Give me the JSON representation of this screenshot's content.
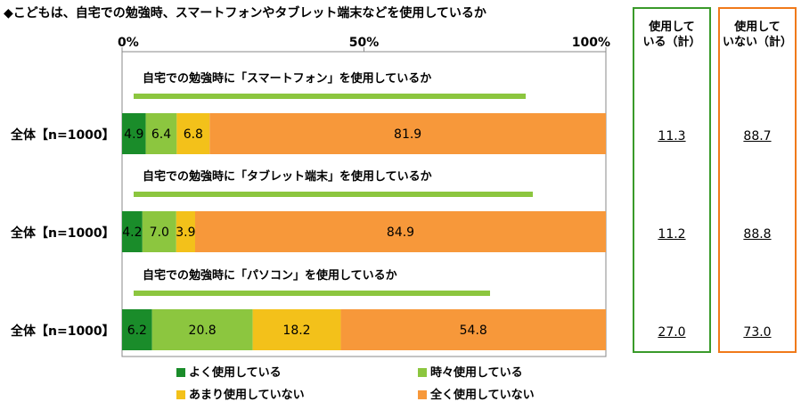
{
  "title": "◆こどもは、自宅での勉強時、スマートフォンやタブレット端末などを使用しているか",
  "colors": {
    "often": "#1a8c2a",
    "sometimes": "#8cc63f",
    "rarely": "#f3c11a",
    "never": "#f7983a",
    "green_box": "#3a9a2a",
    "orange_box": "#f07a1a"
  },
  "summary": {
    "used_header": [
      "使用して",
      "いる（計）"
    ],
    "not_used_header": [
      "使用して",
      "いない（計）"
    ]
  },
  "chart_data": {
    "type": "bar",
    "orientation": "horizontal",
    "stacked": true,
    "xlim": [
      0,
      100
    ],
    "x_ticks": [
      "0%",
      "50%",
      "100%"
    ],
    "categories": [
      "全体【n=1000】",
      "全体【n=1000】",
      "全体【n=1000】"
    ],
    "bar_titles": [
      "自宅での勉強時に「スマートフォン」を使用しているか",
      "自宅での勉強時に「タブレット端末」を使用しているか",
      "自宅での勉強時に「パソコン」を使用しているか"
    ],
    "series": [
      {
        "name": "よく使用している",
        "values": [
          4.9,
          4.2,
          6.2
        ]
      },
      {
        "name": "時々使用している",
        "values": [
          6.4,
          7.0,
          20.8
        ]
      },
      {
        "name": "あまり使用していない",
        "values": [
          6.8,
          3.9,
          18.2
        ]
      },
      {
        "name": "全く使用していない",
        "values": [
          81.9,
          84.9,
          54.8
        ]
      }
    ],
    "value_labels": [
      [
        "4.9",
        "6.4",
        "6.8",
        "81.9"
      ],
      [
        "4.2",
        "7.0",
        "3.9",
        "84.9"
      ],
      [
        "6.2",
        "20.8",
        "18.2",
        "54.8"
      ]
    ],
    "used_total": [
      "11.3",
      "11.2",
      "27.0"
    ],
    "not_used_total": [
      "88.7",
      "88.8",
      "73.0"
    ]
  }
}
